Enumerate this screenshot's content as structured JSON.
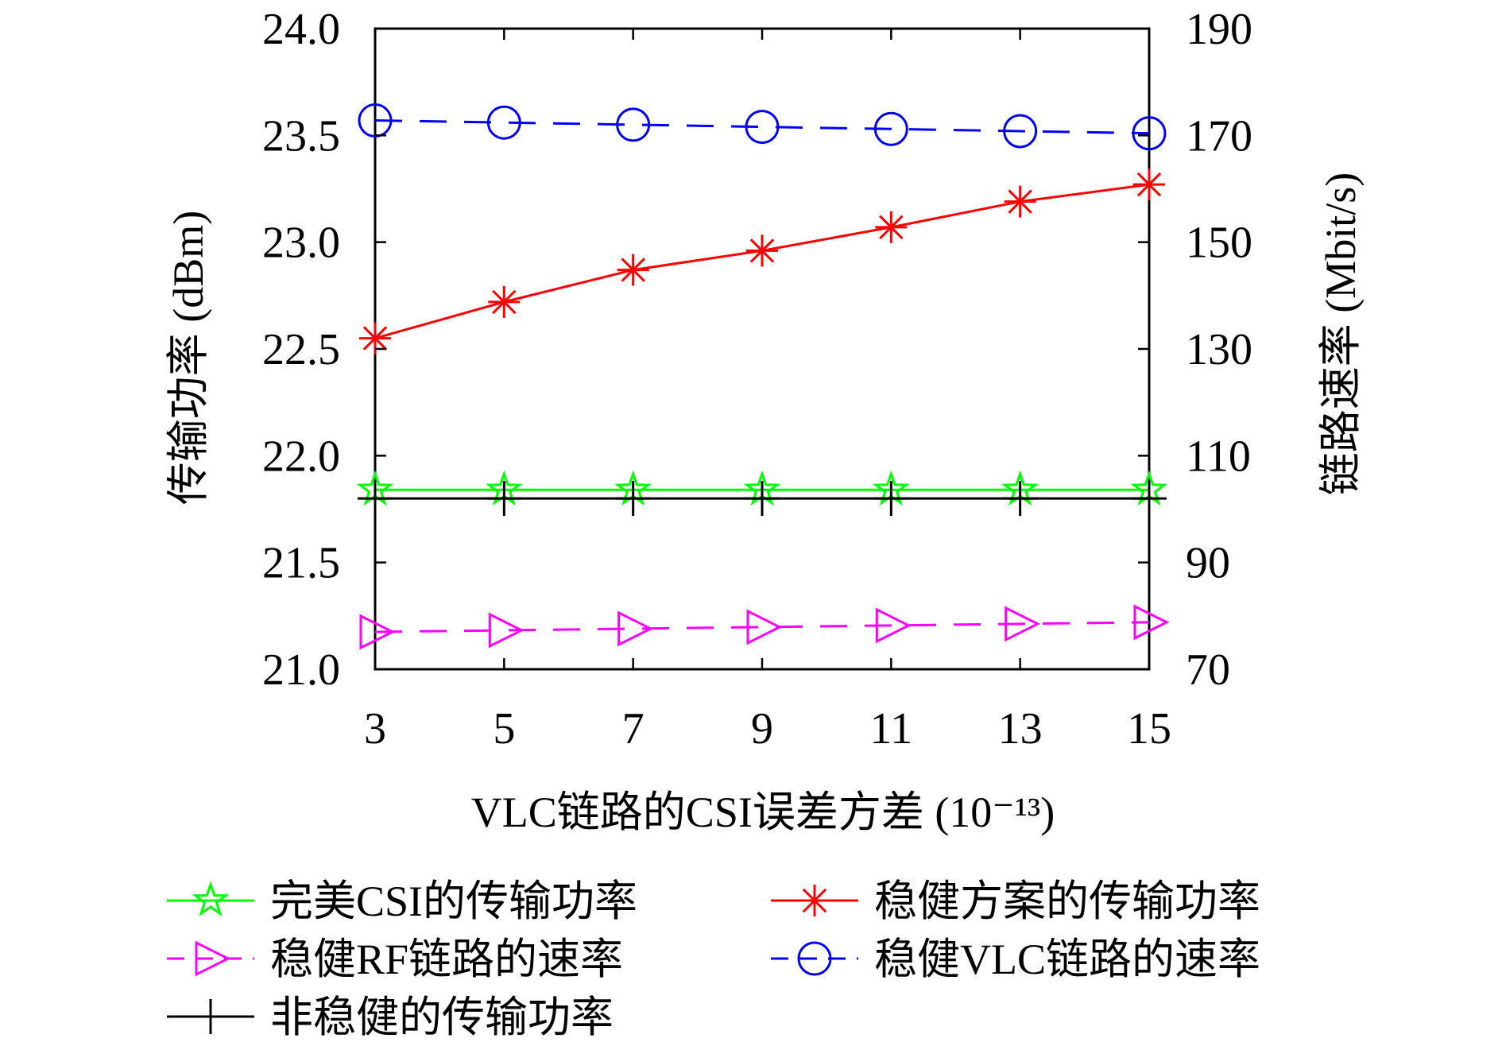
{
  "chart_data": {
    "type": "line",
    "xlabel": "VLC链路的CSI误差方差 (10⁻¹³)",
    "ylabel_left": "传输功率 (dBm)",
    "ylabel_right": "链路速率 (Mbit/s)",
    "x": [
      3,
      5,
      7,
      9,
      11,
      13,
      15
    ],
    "x_ticks": [
      "3",
      "5",
      "7",
      "9",
      "11",
      "13",
      "15"
    ],
    "ylim_left": [
      21.0,
      24.0
    ],
    "yticks_left": [
      "21.0",
      "21.5",
      "22.0",
      "22.5",
      "23.0",
      "23.5",
      "24.0"
    ],
    "ylim_right": [
      70,
      190
    ],
    "yticks_right": [
      "70",
      "90",
      "110",
      "130",
      "150",
      "170",
      "190"
    ],
    "grid": false,
    "legend_position": "bottom",
    "series": [
      {
        "name": "完美CSI的传输功率",
        "axis": "left",
        "color": "#00ff00",
        "marker": "star",
        "dash": false,
        "values": [
          21.84,
          21.84,
          21.84,
          21.84,
          21.84,
          21.84,
          21.84
        ]
      },
      {
        "name": "稳健方案的传输功率",
        "axis": "left",
        "color": "#ff0000",
        "marker": "asterisk",
        "dash": false,
        "values": [
          22.55,
          22.72,
          22.87,
          22.96,
          23.07,
          23.19,
          23.27
        ]
      },
      {
        "name": "稳健RF链路的速率",
        "axis": "right",
        "color": "#ff00ff",
        "marker": "triangle-right",
        "dash": true,
        "values": [
          77.0,
          77.3,
          77.6,
          77.9,
          78.2,
          78.5,
          78.8
        ]
      },
      {
        "name": "稳健VLC链路的速率",
        "axis": "right",
        "color": "#0000ff",
        "marker": "circle",
        "dash": true,
        "values": [
          172.8,
          172.4,
          172.0,
          171.6,
          171.2,
          170.8,
          170.4
        ]
      },
      {
        "name": "非稳健的传输功率",
        "axis": "left",
        "color": "#000000",
        "marker": "plus",
        "dash": false,
        "values": [
          21.8,
          21.8,
          21.8,
          21.8,
          21.8,
          21.8,
          21.8
        ]
      }
    ]
  }
}
